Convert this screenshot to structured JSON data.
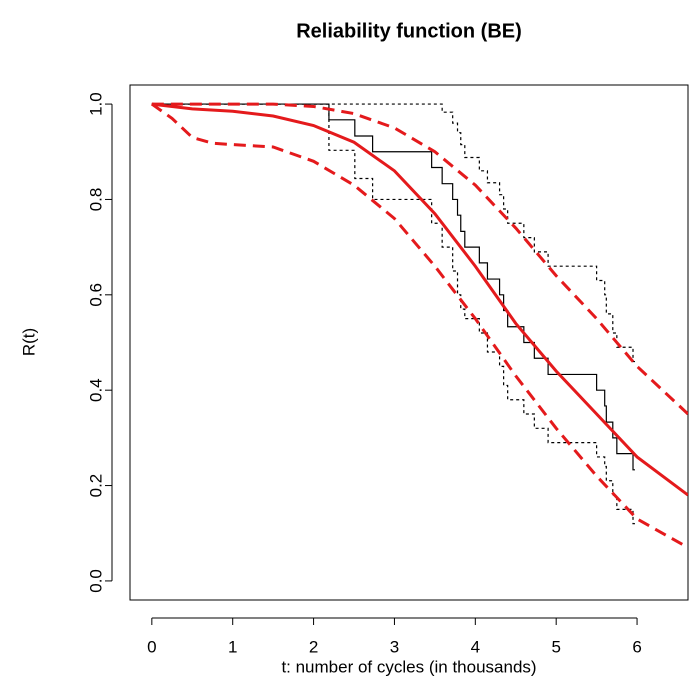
{
  "chart_data": {
    "type": "line",
    "title": "Reliability function (BE)",
    "x_label": "t: number of cycles (in thousands)",
    "y_label": "R(t)",
    "xlim": [
      -0.27,
      6.63
    ],
    "ylim": [
      -0.04,
      1.04
    ],
    "xticks": [
      0,
      1,
      2,
      3,
      4,
      5,
      6
    ],
    "yticks": [
      {
        "value": 0,
        "label": "0.0"
      },
      {
        "value": 0.2,
        "label": "0.2"
      },
      {
        "value": 0.4,
        "label": "0.4"
      },
      {
        "value": 0.6,
        "label": "0.6"
      },
      {
        "value": 0.8,
        "label": "0.8"
      },
      {
        "value": 1,
        "label": "1.0"
      }
    ],
    "series": [
      {
        "color": "#000000",
        "dash": "solid",
        "step": true,
        "x": [
          0,
          2.19,
          2.51,
          2.73,
          3.46,
          3.59,
          3.72,
          3.78,
          3.82,
          3.87,
          4.05,
          4.15,
          4.3,
          4.35,
          4.4,
          4.6,
          4.73,
          4.9,
          5.5,
          5.6,
          5.62,
          5.7,
          5.75,
          5.95
        ],
        "values": [
          1,
          0.967,
          0.933,
          0.9,
          0.867,
          0.833,
          0.8,
          0.767,
          0.733,
          0.7,
          0.667,
          0.633,
          0.6,
          0.567,
          0.533,
          0.5,
          0.467,
          0.433,
          0.4,
          0.367,
          0.333,
          0.3,
          0.267,
          0.233
        ]
      },
      {
        "color": "#000000",
        "dash": "dotted",
        "step": true,
        "x": [
          0,
          2.19,
          2.51,
          2.73,
          3.46,
          3.59,
          3.72,
          3.78,
          3.82,
          3.87,
          4.05,
          4.15,
          4.3,
          4.35,
          4.4,
          4.6,
          4.73,
          4.9,
          5.5,
          5.6,
          5.62,
          5.7,
          5.75,
          5.95
        ],
        "values": [
          1,
          1,
          1,
          1,
          1,
          0.983,
          0.96,
          0.94,
          0.915,
          0.888,
          0.86,
          0.835,
          0.81,
          0.78,
          0.75,
          0.72,
          0.69,
          0.66,
          0.63,
          0.6,
          0.56,
          0.52,
          0.49,
          0.46
        ]
      },
      {
        "color": "#000000",
        "dash": "dotted",
        "step": true,
        "x": [
          0,
          2.19,
          2.51,
          2.73,
          3.46,
          3.59,
          3.72,
          3.78,
          3.82,
          3.87,
          4.05,
          4.15,
          4.3,
          4.35,
          4.4,
          4.6,
          4.73,
          4.9,
          5.5,
          5.6,
          5.62,
          5.7,
          5.75,
          5.95
        ],
        "values": [
          1,
          0.903,
          0.844,
          0.8,
          0.75,
          0.7,
          0.65,
          0.6,
          0.57,
          0.55,
          0.52,
          0.48,
          0.45,
          0.41,
          0.38,
          0.35,
          0.32,
          0.29,
          0.26,
          0.24,
          0.21,
          0.18,
          0.15,
          0.12
        ]
      },
      {
        "color": "#e41a1c",
        "dash": "solid",
        "step": false,
        "x": [
          0,
          0.5,
          1,
          1.5,
          2,
          2.5,
          3,
          3.5,
          4,
          4.5,
          5,
          5.5,
          6,
          6.63
        ],
        "values": [
          1,
          0.99,
          0.985,
          0.975,
          0.955,
          0.92,
          0.86,
          0.77,
          0.66,
          0.54,
          0.44,
          0.35,
          0.26,
          0.18
        ]
      },
      {
        "color": "#e41a1c",
        "dash": "dashed",
        "step": false,
        "x": [
          0,
          0.5,
          1,
          1.5,
          2,
          2.5,
          3,
          3.5,
          4,
          4.5,
          5,
          5.5,
          6,
          6.63
        ],
        "values": [
          1,
          1,
          1,
          1,
          0.995,
          0.98,
          0.95,
          0.9,
          0.83,
          0.74,
          0.64,
          0.55,
          0.45,
          0.35
        ]
      },
      {
        "color": "#e41a1c",
        "dash": "dashed",
        "step": false,
        "x": [
          0,
          0.25,
          0.5,
          0.75,
          1,
          1.5,
          2,
          2.5,
          3,
          3.5,
          4,
          4.5,
          5,
          5.5,
          6,
          6.63
        ],
        "values": [
          1,
          0.97,
          0.93,
          0.918,
          0.915,
          0.91,
          0.88,
          0.83,
          0.76,
          0.66,
          0.55,
          0.43,
          0.32,
          0.22,
          0.13,
          0.07
        ]
      }
    ]
  }
}
